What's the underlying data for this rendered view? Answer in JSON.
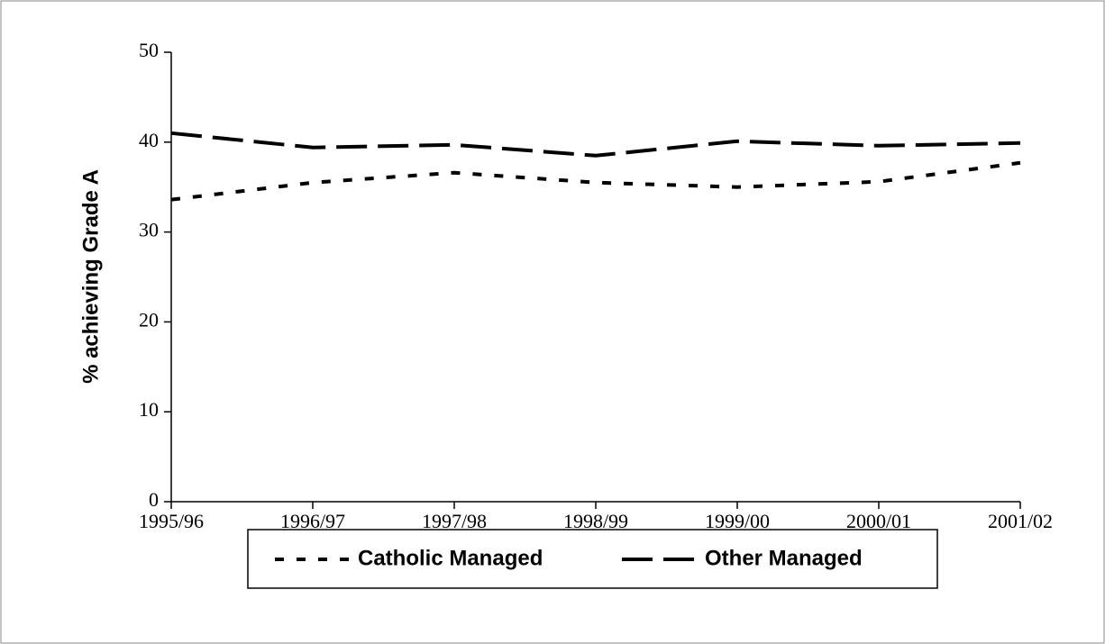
{
  "chart_data": {
    "type": "line",
    "y_label": "% achieving Grade A",
    "categories": [
      "1995/96",
      "1996/97",
      "1997/98",
      "1998/99",
      "1999/00",
      "2000/01",
      "2001/02"
    ],
    "series": [
      {
        "name": "Catholic Managed",
        "color": "#000000",
        "style": "dotted",
        "values": [
          33.6,
          35.5,
          36.6,
          35.5,
          35.0,
          35.6,
          37.7
        ]
      },
      {
        "name": "Other Managed",
        "color": "#000000",
        "style": "dashed",
        "values": [
          41.0,
          39.4,
          39.7,
          38.5,
          40.1,
          39.6,
          39.9
        ]
      }
    ],
    "ylim": [
      0,
      50
    ],
    "yticks": [
      0,
      10,
      20,
      30,
      40,
      50
    ],
    "grid": false,
    "legend": "bottom"
  }
}
